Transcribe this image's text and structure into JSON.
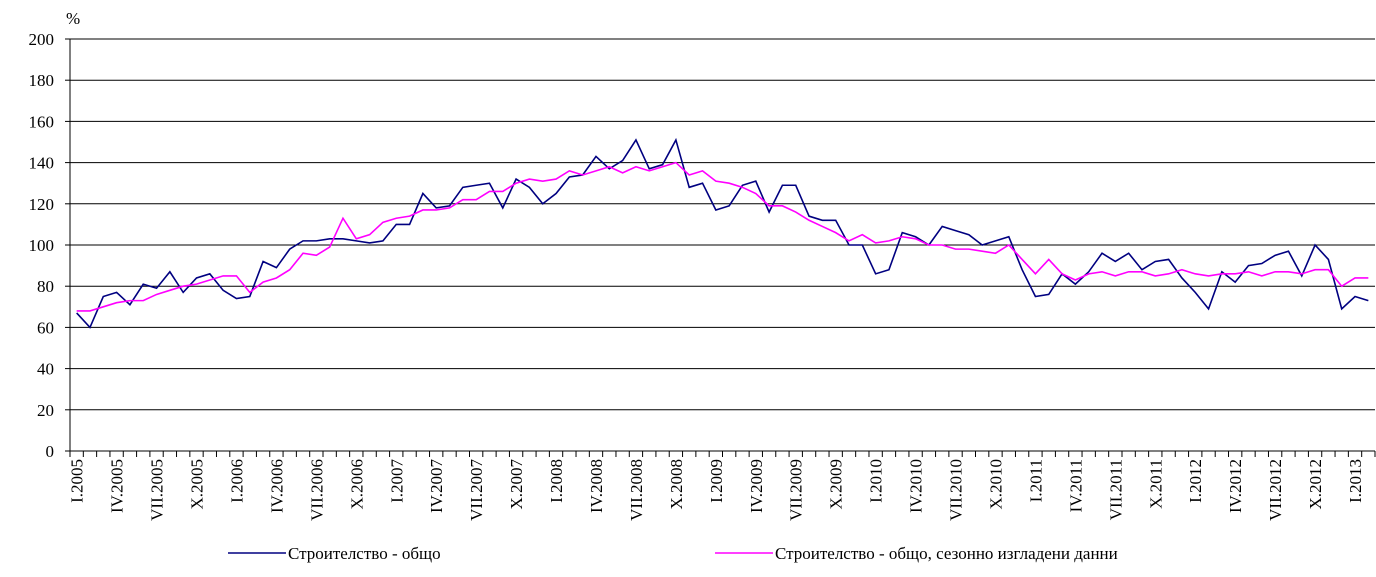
{
  "chart_data": {
    "type": "line",
    "y_label": "%",
    "categories": [
      "I.2005",
      null,
      null,
      "IV.2005",
      null,
      null,
      "VII.2005",
      null,
      null,
      "X.2005",
      null,
      null,
      "I.2006",
      null,
      null,
      "IV.2006",
      null,
      null,
      "VII.2006",
      null,
      null,
      "X.2006",
      null,
      null,
      "I.2007",
      null,
      null,
      "IV.2007",
      null,
      null,
      "VII.2007",
      null,
      null,
      "X.2007",
      null,
      null,
      "I.2008",
      null,
      null,
      "IV.2008",
      null,
      null,
      "VII.2008",
      null,
      null,
      "X.2008",
      null,
      null,
      "I.2009",
      null,
      null,
      "IV.2009",
      null,
      null,
      "VII.2009",
      null,
      null,
      "X.2009",
      null,
      null,
      "I.2010",
      null,
      null,
      "IV.2010",
      null,
      null,
      "VII.2010",
      null,
      null,
      "X.2010",
      null,
      null,
      "I.2011",
      null,
      null,
      "IV.2011",
      null,
      null,
      "VII.2011",
      null,
      null,
      "X.2011",
      null,
      null,
      "I.2012",
      null,
      null,
      "IV.2012",
      null,
      null,
      "VII.2012",
      null,
      null,
      "X.2012",
      null,
      null,
      "I.2013",
      null
    ],
    "series": [
      {
        "name": "Строителство - общо",
        "color": "#000080",
        "values": [
          67,
          60,
          75,
          77,
          71,
          81,
          79,
          87,
          77,
          84,
          86,
          78,
          74,
          75,
          92,
          89,
          98,
          102,
          102,
          103,
          103,
          102,
          101,
          102,
          110,
          110,
          125,
          118,
          119,
          128,
          129,
          130,
          118,
          132,
          128,
          120,
          125,
          133,
          134,
          143,
          137,
          141,
          151,
          137,
          139,
          151,
          128,
          130,
          117,
          119,
          129,
          131,
          116,
          129,
          129,
          114,
          112,
          112,
          100,
          100,
          86,
          88,
          106,
          104,
          100,
          109,
          107,
          105,
          100,
          102,
          104,
          88,
          75,
          76,
          86,
          81,
          87,
          96,
          92,
          96,
          88,
          92,
          93,
          84,
          77,
          69,
          87,
          82,
          90,
          91,
          95,
          97,
          85,
          100,
          93,
          69,
          75,
          73
        ]
      },
      {
        "name": "Строителство - общо, сезонно изгладени данни",
        "color": "#ff00ff",
        "values": [
          68,
          68,
          70,
          72,
          73,
          73,
          76,
          78,
          80,
          81,
          83,
          85,
          85,
          77,
          82,
          84,
          88,
          96,
          95,
          99,
          113,
          103,
          105,
          111,
          113,
          114,
          117,
          117,
          118,
          122,
          122,
          126,
          126,
          130,
          132,
          131,
          132,
          136,
          134,
          136,
          138,
          135,
          138,
          136,
          138,
          140,
          134,
          136,
          131,
          130,
          128,
          125,
          119,
          119,
          116,
          112,
          109,
          106,
          102,
          105,
          101,
          102,
          104,
          103,
          100,
          100,
          98,
          98,
          97,
          96,
          100,
          93,
          86,
          93,
          86,
          83,
          86,
          87,
          85,
          87,
          87,
          85,
          86,
          88,
          86,
          85,
          86,
          86,
          87,
          85,
          87,
          87,
          86,
          88,
          88,
          80,
          84,
          84
        ]
      }
    ],
    "ylim": [
      0,
      200
    ],
    "yticks": [
      0,
      20,
      40,
      60,
      80,
      100,
      120,
      140,
      160,
      180,
      200
    ],
    "grid": true,
    "legend": "bottom"
  }
}
